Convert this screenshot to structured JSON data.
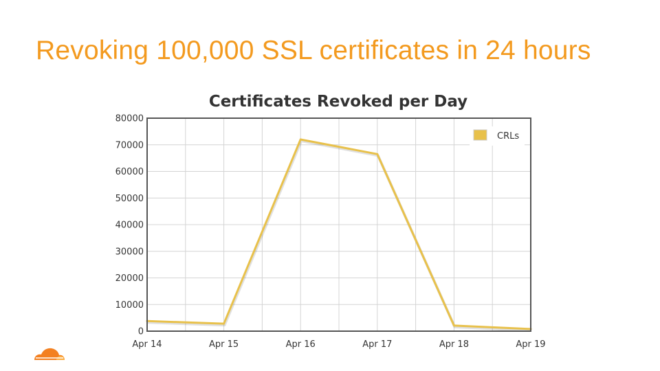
{
  "slide": {
    "title": "Revoking 100,000 SSL certificates in 24 hours"
  },
  "colors": {
    "title": "#F39A1F",
    "series": "#E8C14B",
    "logo": "#F38020"
  },
  "logo": {
    "icon": "cloud-logo-icon"
  },
  "chart_data": {
    "type": "line",
    "title": "Certificates Revoked per Day",
    "xlabel": "",
    "ylabel": "",
    "x": [
      "Apr 14",
      "Apr 15",
      "Apr 16",
      "Apr 17",
      "Apr 18",
      "Apr 19"
    ],
    "ylim": [
      0,
      80000
    ],
    "yticks": [
      0,
      10000,
      20000,
      30000,
      40000,
      50000,
      60000,
      70000,
      80000
    ],
    "grid": true,
    "legend_position": "top-right",
    "series": [
      {
        "name": "CRLs",
        "values": [
          3800,
          2800,
          72000,
          66500,
          2100,
          800
        ]
      }
    ]
  }
}
